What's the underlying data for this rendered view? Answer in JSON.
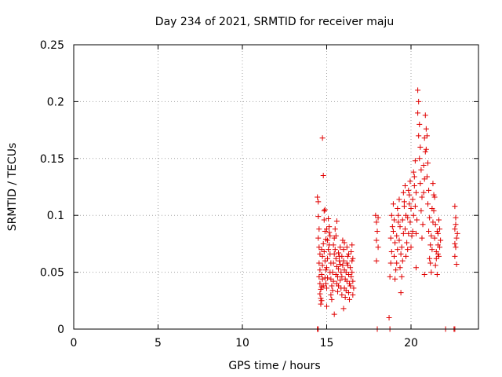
{
  "chart_data": {
    "type": "scatter",
    "title": "Day 234 of 2021, SRMTID for receiver maju",
    "xlabel": "GPS time / hours",
    "ylabel": "SRMTID / TECUs",
    "xlim": [
      0,
      24
    ],
    "ylim": [
      0,
      0.25
    ],
    "xticks": [
      0,
      5,
      10,
      15,
      20
    ],
    "yticks": [
      0,
      0.05,
      0.1,
      0.15,
      0.2,
      0.25
    ],
    "xtick_labels": [
      "0",
      "5",
      "10",
      "15",
      "20"
    ],
    "ytick_labels": [
      "0",
      "0.05",
      "0.1",
      "0.15",
      "0.2",
      "0.25"
    ],
    "grid": true,
    "marker": "+",
    "series": [
      {
        "name": "SRMTID",
        "color": "#e00000",
        "points": [
          [
            14.45,
            0.116
          ],
          [
            14.5,
            0.112
          ],
          [
            14.5,
            0.099
          ],
          [
            14.55,
            0.088
          ],
          [
            14.5,
            0.08
          ],
          [
            14.55,
            0.072
          ],
          [
            14.6,
            0.066
          ],
          [
            14.55,
            0.058
          ],
          [
            14.6,
            0.052
          ],
          [
            14.55,
            0.046
          ],
          [
            14.6,
            0.04
          ],
          [
            14.65,
            0.035
          ],
          [
            14.6,
            0.031
          ],
          [
            14.65,
            0.027
          ],
          [
            14.7,
            0.037
          ],
          [
            14.7,
            0.048
          ],
          [
            14.75,
            0.056
          ],
          [
            14.75,
            0.064
          ],
          [
            14.7,
            0.07
          ],
          [
            14.8,
            0.075
          ],
          [
            14.75,
            0.044
          ],
          [
            14.8,
            0.038
          ],
          [
            14.65,
            0.022
          ],
          [
            14.7,
            0.025
          ],
          [
            14.75,
            0.168
          ],
          [
            14.8,
            0.135
          ],
          [
            14.85,
            0.104
          ],
          [
            14.9,
            0.105
          ],
          [
            14.85,
            0.096
          ],
          [
            14.9,
            0.086
          ],
          [
            14.95,
            0.079
          ],
          [
            14.85,
            0.068
          ],
          [
            14.9,
            0.06
          ],
          [
            14.95,
            0.052
          ],
          [
            14.9,
            0.045
          ],
          [
            14.95,
            0.04
          ],
          [
            15.0,
            0.036
          ],
          [
            15.05,
            0.045
          ],
          [
            15.0,
            0.054
          ],
          [
            15.05,
            0.062
          ],
          [
            15.1,
            0.07
          ],
          [
            15.05,
            0.078
          ],
          [
            15.0,
            0.088
          ],
          [
            15.1,
            0.097
          ],
          [
            15.15,
            0.09
          ],
          [
            15.2,
            0.082
          ],
          [
            15.15,
            0.074
          ],
          [
            15.2,
            0.066
          ],
          [
            15.25,
            0.058
          ],
          [
            15.2,
            0.05
          ],
          [
            15.25,
            0.044
          ],
          [
            15.3,
            0.038
          ],
          [
            15.25,
            0.03
          ],
          [
            15.3,
            0.026
          ],
          [
            15.35,
            0.034
          ],
          [
            15.4,
            0.042
          ],
          [
            15.35,
            0.05
          ],
          [
            15.4,
            0.058
          ],
          [
            15.45,
            0.066
          ],
          [
            15.4,
            0.074
          ],
          [
            15.45,
            0.08
          ],
          [
            15.5,
            0.088
          ],
          [
            15.55,
            0.082
          ],
          [
            15.5,
            0.07
          ],
          [
            15.55,
            0.062
          ],
          [
            15.6,
            0.055
          ],
          [
            15.55,
            0.048
          ],
          [
            15.6,
            0.04
          ],
          [
            15.65,
            0.033
          ],
          [
            15.7,
            0.038
          ],
          [
            15.65,
            0.046
          ],
          [
            15.7,
            0.053
          ],
          [
            15.75,
            0.06
          ],
          [
            15.7,
            0.067
          ],
          [
            15.8,
            0.072
          ],
          [
            15.75,
            0.064
          ],
          [
            15.8,
            0.057
          ],
          [
            15.85,
            0.05
          ],
          [
            15.8,
            0.043
          ],
          [
            15.85,
            0.036
          ],
          [
            15.9,
            0.03
          ],
          [
            15.9,
            0.046
          ],
          [
            15.95,
            0.056
          ],
          [
            15.9,
            0.064
          ],
          [
            16.0,
            0.07
          ],
          [
            15.95,
            0.078
          ],
          [
            16.05,
            0.076
          ],
          [
            16.0,
            0.06
          ],
          [
            16.05,
            0.052
          ],
          [
            16.1,
            0.044
          ],
          [
            16.05,
            0.036
          ],
          [
            16.1,
            0.028
          ],
          [
            16.15,
            0.034
          ],
          [
            16.2,
            0.042
          ],
          [
            16.15,
            0.05
          ],
          [
            16.2,
            0.058
          ],
          [
            16.25,
            0.064
          ],
          [
            16.2,
            0.072
          ],
          [
            16.3,
            0.066
          ],
          [
            16.25,
            0.056
          ],
          [
            16.3,
            0.048
          ],
          [
            16.35,
            0.04
          ],
          [
            16.3,
            0.032
          ],
          [
            16.35,
            0.026
          ],
          [
            16.4,
            0.038
          ],
          [
            16.45,
            0.046
          ],
          [
            16.4,
            0.054
          ],
          [
            16.5,
            0.06
          ],
          [
            16.45,
            0.068
          ],
          [
            16.5,
            0.074
          ],
          [
            16.55,
            0.062
          ],
          [
            16.5,
            0.05
          ],
          [
            16.55,
            0.042
          ],
          [
            16.6,
            0.036
          ],
          [
            16.55,
            0.03
          ],
          [
            15.45,
            0.013
          ],
          [
            15.0,
            0.02
          ],
          [
            16.0,
            0.018
          ],
          [
            15.6,
            0.095
          ],
          [
            15.15,
            0.085
          ],
          [
            17.9,
            0.1
          ],
          [
            17.95,
            0.094
          ],
          [
            18.0,
            0.086
          ],
          [
            17.95,
            0.078
          ],
          [
            18.05,
            0.072
          ],
          [
            17.95,
            0.06
          ],
          [
            18.05,
            0.098
          ],
          [
            18.7,
            0.01
          ],
          [
            18.75,
            0.046
          ],
          [
            18.8,
            0.058
          ],
          [
            18.85,
            0.068
          ],
          [
            18.8,
            0.08
          ],
          [
            18.9,
            0.09
          ],
          [
            18.85,
            0.1
          ],
          [
            18.95,
            0.11
          ],
          [
            19.0,
            0.096
          ],
          [
            18.95,
            0.086
          ],
          [
            19.05,
            0.076
          ],
          [
            19.0,
            0.064
          ],
          [
            19.1,
            0.052
          ],
          [
            19.05,
            0.044
          ],
          [
            19.15,
            0.058
          ],
          [
            19.2,
            0.07
          ],
          [
            19.15,
            0.082
          ],
          [
            19.25,
            0.094
          ],
          [
            19.2,
            0.106
          ],
          [
            19.3,
            0.114
          ],
          [
            19.25,
            0.1
          ],
          [
            19.35,
            0.09
          ],
          [
            19.3,
            0.078
          ],
          [
            19.4,
            0.066
          ],
          [
            19.35,
            0.054
          ],
          [
            19.45,
            0.046
          ],
          [
            19.5,
            0.06
          ],
          [
            19.45,
            0.072
          ],
          [
            19.55,
            0.084
          ],
          [
            19.5,
            0.096
          ],
          [
            19.6,
            0.108
          ],
          [
            19.55,
            0.12
          ],
          [
            19.65,
            0.126
          ],
          [
            19.6,
            0.112
          ],
          [
            19.7,
            0.1
          ],
          [
            19.65,
            0.088
          ],
          [
            19.75,
            0.076
          ],
          [
            19.7,
            0.064
          ],
          [
            19.8,
            0.07
          ],
          [
            19.85,
            0.084
          ],
          [
            19.8,
            0.098
          ],
          [
            19.9,
            0.11
          ],
          [
            19.85,
            0.122
          ],
          [
            19.95,
            0.13
          ],
          [
            19.9,
            0.118
          ],
          [
            20.0,
            0.106
          ],
          [
            19.95,
            0.094
          ],
          [
            20.05,
            0.082
          ],
          [
            20.0,
            0.072
          ],
          [
            20.1,
            0.086
          ],
          [
            20.15,
            0.1
          ],
          [
            20.1,
            0.114
          ],
          [
            20.2,
            0.126
          ],
          [
            20.15,
            0.138
          ],
          [
            20.25,
            0.148
          ],
          [
            20.2,
            0.134
          ],
          [
            20.3,
            0.12
          ],
          [
            20.25,
            0.108
          ],
          [
            20.35,
            0.096
          ],
          [
            20.3,
            0.084
          ],
          [
            20.4,
            0.21
          ],
          [
            20.45,
            0.2
          ],
          [
            20.4,
            0.19
          ],
          [
            20.5,
            0.18
          ],
          [
            20.45,
            0.17
          ],
          [
            20.55,
            0.16
          ],
          [
            20.5,
            0.15
          ],
          [
            20.6,
            0.14
          ],
          [
            20.55,
            0.128
          ],
          [
            20.65,
            0.116
          ],
          [
            20.6,
            0.104
          ],
          [
            20.7,
            0.092
          ],
          [
            20.65,
            0.08
          ],
          [
            20.75,
            0.12
          ],
          [
            20.8,
            0.132
          ],
          [
            20.75,
            0.144
          ],
          [
            20.85,
            0.156
          ],
          [
            20.8,
            0.168
          ],
          [
            20.9,
            0.176
          ],
          [
            20.85,
            0.188
          ],
          [
            20.95,
            0.17
          ],
          [
            20.9,
            0.158
          ],
          [
            21.0,
            0.146
          ],
          [
            20.95,
            0.134
          ],
          [
            21.05,
            0.122
          ],
          [
            21.0,
            0.11
          ],
          [
            21.1,
            0.098
          ],
          [
            21.05,
            0.086
          ],
          [
            21.15,
            0.074
          ],
          [
            21.1,
            0.062
          ],
          [
            21.2,
            0.05
          ],
          [
            21.15,
            0.058
          ],
          [
            21.25,
            0.07
          ],
          [
            21.2,
            0.082
          ],
          [
            21.3,
            0.094
          ],
          [
            21.25,
            0.106
          ],
          [
            21.35,
            0.118
          ],
          [
            21.3,
            0.128
          ],
          [
            21.4,
            0.116
          ],
          [
            21.35,
            0.104
          ],
          [
            21.45,
            0.092
          ],
          [
            21.4,
            0.08
          ],
          [
            21.5,
            0.068
          ],
          [
            21.45,
            0.056
          ],
          [
            21.55,
            0.048
          ],
          [
            21.5,
            0.062
          ],
          [
            21.6,
            0.074
          ],
          [
            21.55,
            0.086
          ],
          [
            21.65,
            0.096
          ],
          [
            21.6,
            0.084
          ],
          [
            21.7,
            0.072
          ],
          [
            21.65,
            0.064
          ],
          [
            21.75,
            0.078
          ],
          [
            21.7,
            0.088
          ],
          [
            21.6,
            0.066
          ],
          [
            20.3,
            0.054
          ],
          [
            19.4,
            0.032
          ],
          [
            20.8,
            0.048
          ],
          [
            22.6,
            0.108
          ],
          [
            22.65,
            0.098
          ],
          [
            22.6,
            0.088
          ],
          [
            22.7,
            0.08
          ],
          [
            22.65,
            0.072
          ],
          [
            22.6,
            0.064
          ],
          [
            22.7,
            0.057
          ],
          [
            22.65,
            0.092
          ],
          [
            22.75,
            0.084
          ],
          [
            22.6,
            0.075
          ],
          [
            14.45,
            0.0
          ],
          [
            14.5,
            0.0
          ],
          [
            18.0,
            0.0
          ],
          [
            18.75,
            0.0
          ],
          [
            22.05,
            0.0
          ],
          [
            22.55,
            0.0
          ],
          [
            22.6,
            0.0
          ]
        ]
      }
    ]
  }
}
